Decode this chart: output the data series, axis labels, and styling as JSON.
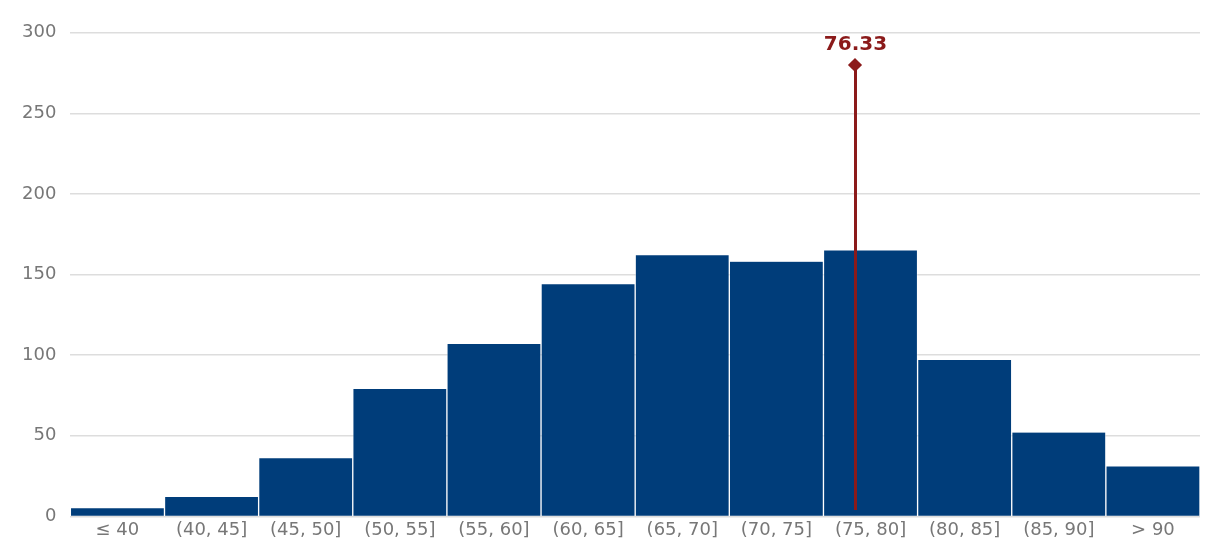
{
  "chart_data": {
    "type": "bar",
    "categories": [
      "≤ 40",
      "(40, 45]",
      "(45, 50]",
      "(50, 55]",
      "(55, 60]",
      "(60, 65]",
      "(65, 70]",
      "(70, 75]",
      "(75, 80]",
      "(80, 85]",
      "(85, 90]",
      "> 90"
    ],
    "values": [
      5,
      12,
      36,
      79,
      107,
      144,
      162,
      158,
      165,
      97,
      52,
      31
    ],
    "color": "#003d7a",
    "ylim": [
      0,
      300
    ],
    "yticks": [
      0,
      50,
      100,
      150,
      200,
      250,
      300
    ],
    "grid": "y",
    "annotations": [
      "76.33"
    ]
  }
}
